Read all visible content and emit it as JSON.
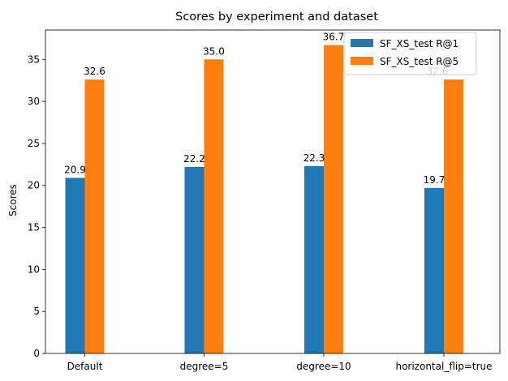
{
  "chart_data": {
    "type": "bar",
    "title": "Scores by experiment and dataset",
    "xlabel": "",
    "ylabel": "Scores",
    "categories": [
      "Default",
      "degree=5",
      "degree=10",
      "horizontal_flip=true"
    ],
    "series": [
      {
        "name": "SF_XS_test R@1",
        "color": "#1f77b4",
        "values": [
          20.9,
          22.2,
          22.3,
          19.7
        ],
        "labels": [
          "20.9",
          "22.2",
          "22.3",
          "19.7"
        ]
      },
      {
        "name": "SF_XS_test R@5",
        "color": "#ff7f0e",
        "values": [
          32.6,
          35.0,
          36.7,
          32.6
        ],
        "labels": [
          "32.6",
          "35.0",
          "36.7",
          "32.6"
        ]
      }
    ],
    "ylim": [
      0,
      38.5
    ],
    "yticks": [
      0,
      5,
      10,
      15,
      20,
      25,
      30,
      35
    ],
    "ytick_labels": [
      "0",
      "5",
      "10",
      "15",
      "20",
      "25",
      "30",
      "35"
    ],
    "grid": false,
    "legend_position": "top-right"
  }
}
